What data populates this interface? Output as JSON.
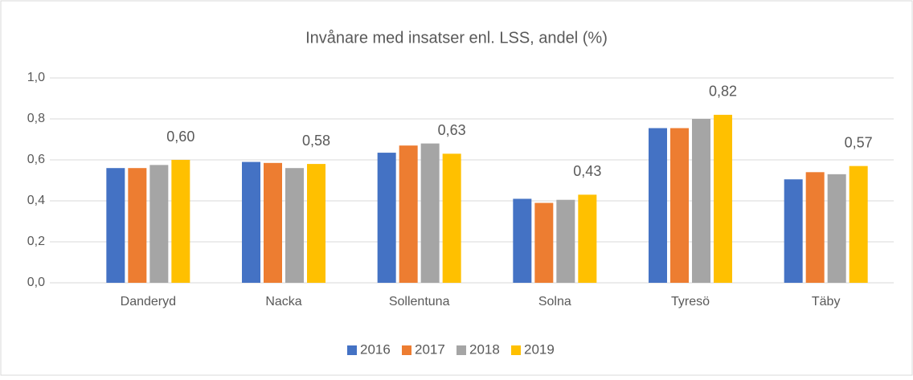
{
  "chart_data": {
    "type": "bar",
    "title": "Invånare med insatser enl. LSS, andel (%)",
    "categories": [
      "Danderyd",
      "Nacka",
      "Sollentuna",
      "Solna",
      "Tyresö",
      "Täby"
    ],
    "series": [
      {
        "name": "2016",
        "color": "#4472c4",
        "values": [
          0.56,
          0.59,
          0.635,
          0.41,
          0.755,
          0.505
        ]
      },
      {
        "name": "2017",
        "color": "#ed7d31",
        "values": [
          0.56,
          0.585,
          0.67,
          0.39,
          0.755,
          0.54
        ]
      },
      {
        "name": "2018",
        "color": "#a5a5a5",
        "values": [
          0.575,
          0.56,
          0.68,
          0.405,
          0.8,
          0.53
        ]
      },
      {
        "name": "2019",
        "color": "#ffc000",
        "values": [
          0.6,
          0.58,
          0.63,
          0.43,
          0.82,
          0.57
        ],
        "value_labels": [
          "0,60",
          "0,58",
          "0,63",
          "0,43",
          "0,82",
          "0,57"
        ]
      }
    ],
    "ylim": [
      0,
      1.0
    ],
    "yticks": [
      {
        "value": 0,
        "label": "0,0"
      },
      {
        "value": 0.2,
        "label": "0,2"
      },
      {
        "value": 0.4,
        "label": "0,4"
      },
      {
        "value": 0.6,
        "label": "0,6"
      },
      {
        "value": 0.8,
        "label": "0,8"
      },
      {
        "value": 1.0,
        "label": "1,0"
      }
    ],
    "grid": true,
    "legend": "bottom"
  }
}
